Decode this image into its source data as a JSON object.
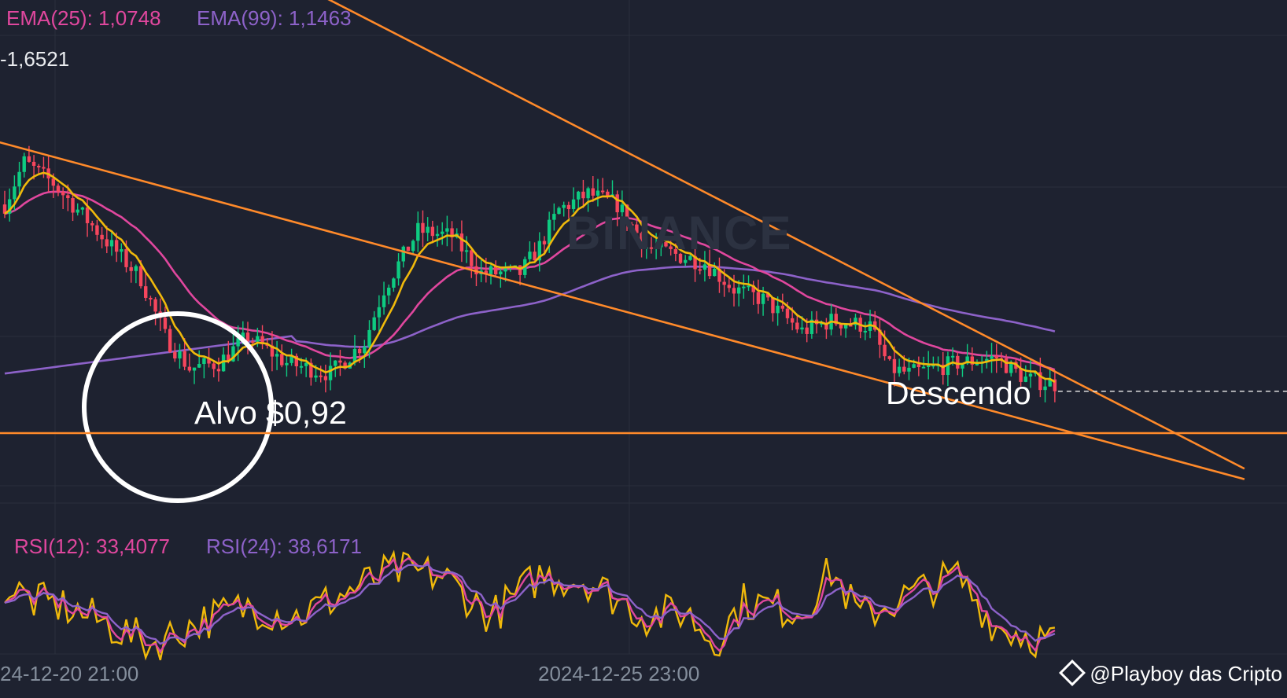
{
  "header": {
    "ema25": "EMA(25): 1,0748",
    "ema99": "EMA(99): 1,1463",
    "price_readout": "-1,6521"
  },
  "rsi_header": {
    "rsi12": "RSI(12): 33,4077",
    "rsi24": "RSI(24): 38,6171"
  },
  "watermark": "BINANCE",
  "credit": "@Playboy das Cripto",
  "colors": {
    "background": "#1e2230",
    "up": "#0ecb81",
    "down": "#f6465d",
    "ema7": "#f0b90b",
    "ema25": "#e0479e",
    "ema99": "#8d62c9",
    "trendline": "#ff8a2a",
    "marker": "#ffffff"
  },
  "chart_data": {
    "type": "candlestick",
    "price_unit": "USD",
    "x_ticks": [
      "24-12-20 21:00",
      "2024-12-25 23:00"
    ],
    "candle_count": 217,
    "series": [
      {
        "name": "EMA(25)",
        "last": 1.0748
      },
      {
        "name": "EMA(99)",
        "last": 1.1463
      },
      {
        "name": "RSI(12)",
        "last": 33.4077
      },
      {
        "name": "RSI(24)",
        "last": 38.6171
      }
    ],
    "price_path": [
      {
        "i": 0,
        "price": 1.38
      },
      {
        "i": 4,
        "price": 1.46
      },
      {
        "i": 10,
        "price": 1.42
      },
      {
        "i": 22,
        "price": 1.3
      },
      {
        "i": 28,
        "price": 1.24
      },
      {
        "i": 33,
        "price": 1.13
      },
      {
        "i": 38,
        "price": 1.07
      },
      {
        "i": 44,
        "price": 1.08
      },
      {
        "i": 50,
        "price": 1.13
      },
      {
        "i": 58,
        "price": 1.08
      },
      {
        "i": 67,
        "price": 1.06
      },
      {
        "i": 74,
        "price": 1.12
      },
      {
        "i": 78,
        "price": 1.22
      },
      {
        "i": 85,
        "price": 1.33
      },
      {
        "i": 92,
        "price": 1.32
      },
      {
        "i": 98,
        "price": 1.25
      },
      {
        "i": 106,
        "price": 1.25
      },
      {
        "i": 110,
        "price": 1.3
      },
      {
        "i": 114,
        "price": 1.37
      },
      {
        "i": 120,
        "price": 1.4
      },
      {
        "i": 126,
        "price": 1.38
      },
      {
        "i": 132,
        "price": 1.3
      },
      {
        "i": 144,
        "price": 1.27
      },
      {
        "i": 150,
        "price": 1.22
      },
      {
        "i": 156,
        "price": 1.2
      },
      {
        "i": 164,
        "price": 1.14
      },
      {
        "i": 170,
        "price": 1.16
      },
      {
        "i": 178,
        "price": 1.15
      },
      {
        "i": 182,
        "price": 1.07
      },
      {
        "i": 186,
        "price": 1.06
      },
      {
        "i": 196,
        "price": 1.08
      },
      {
        "i": 204,
        "price": 1.09
      },
      {
        "i": 210,
        "price": 1.05
      },
      {
        "i": 216,
        "price": 1.04
      }
    ],
    "rsi_path": [
      {
        "i": 0,
        "rsi": 56
      },
      {
        "i": 6,
        "rsi": 50
      },
      {
        "i": 12,
        "rsi": 48
      },
      {
        "i": 20,
        "rsi": 42
      },
      {
        "i": 30,
        "rsi": 33
      },
      {
        "i": 40,
        "rsi": 42
      },
      {
        "i": 50,
        "rsi": 48
      },
      {
        "i": 60,
        "rsi": 44
      },
      {
        "i": 72,
        "rsi": 55
      },
      {
        "i": 80,
        "rsi": 62
      },
      {
        "i": 90,
        "rsi": 60
      },
      {
        "i": 100,
        "rsi": 44
      },
      {
        "i": 110,
        "rsi": 60
      },
      {
        "i": 120,
        "rsi": 58
      },
      {
        "i": 132,
        "rsi": 44
      },
      {
        "i": 140,
        "rsi": 46
      },
      {
        "i": 146,
        "rsi": 34
      },
      {
        "i": 152,
        "rsi": 50
      },
      {
        "i": 164,
        "rsi": 46
      },
      {
        "i": 170,
        "rsi": 62
      },
      {
        "i": 176,
        "rsi": 44
      },
      {
        "i": 188,
        "rsi": 54
      },
      {
        "i": 196,
        "rsi": 60
      },
      {
        "i": 204,
        "rsi": 40
      },
      {
        "i": 216,
        "rsi": 34
      }
    ],
    "annotations": [
      {
        "type": "label",
        "text": "Alvo $0,92"
      },
      {
        "type": "label",
        "text": "Descendo"
      },
      {
        "type": "circle",
        "around": "Alvo $0,92"
      },
      {
        "type": "horizontal_line",
        "price": 0.92
      },
      {
        "type": "trendline",
        "from": {
          "i": -2,
          "price": 1.5
        },
        "to": {
          "i": 255,
          "price": 0.86
        }
      },
      {
        "type": "trendline",
        "from": {
          "i": 45,
          "price": 1.87
        },
        "to": {
          "i": 255,
          "price": 0.88
        }
      }
    ],
    "grid": true
  }
}
